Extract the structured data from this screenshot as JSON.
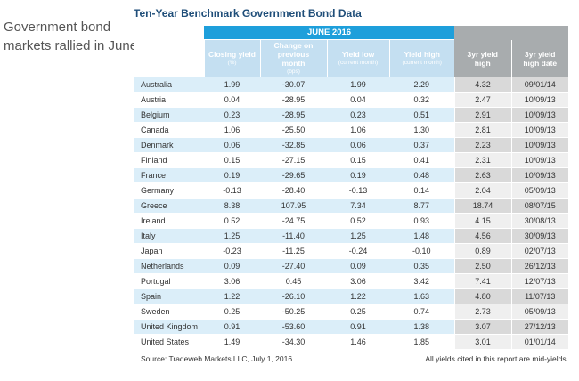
{
  "side_heading": [
    "Government bond",
    "markets rallied in June"
  ],
  "title": "Ten-Year Benchmark Government Bond Data",
  "group_header": "JUNE 2016",
  "columns": [
    {
      "main": "Closing yield",
      "sub": "(%)"
    },
    {
      "main": "Change on previous month",
      "sub": "(bps)"
    },
    {
      "main": "Yield low",
      "sub": "(current month)"
    },
    {
      "main": "Yield high",
      "sub": "(current month)"
    },
    {
      "main": "3yr yield high",
      "sub": ""
    },
    {
      "main": "3yr yield high date",
      "sub": ""
    }
  ],
  "rows": [
    {
      "country": "Australia",
      "values": [
        "1.99",
        "-30.07",
        "1.99",
        "2.29",
        "4.32",
        "09/01/14"
      ]
    },
    {
      "country": "Austria",
      "values": [
        "0.04",
        "-28.95",
        "0.04",
        "0.32",
        "2.47",
        "10/09/13"
      ]
    },
    {
      "country": "Belgium",
      "values": [
        "0.23",
        "-28.95",
        "0.23",
        "0.51",
        "2.91",
        "10/09/13"
      ]
    },
    {
      "country": "Canada",
      "values": [
        "1.06",
        "-25.50",
        "1.06",
        "1.30",
        "2.81",
        "10/09/13"
      ]
    },
    {
      "country": "Denmark",
      "values": [
        "0.06",
        "-32.85",
        "0.06",
        "0.37",
        "2.23",
        "10/09/13"
      ]
    },
    {
      "country": "Finland",
      "values": [
        "0.15",
        "-27.15",
        "0.15",
        "0.41",
        "2.31",
        "10/09/13"
      ]
    },
    {
      "country": "France",
      "values": [
        "0.19",
        "-29.65",
        "0.19",
        "0.48",
        "2.63",
        "10/09/13"
      ]
    },
    {
      "country": "Germany",
      "values": [
        "-0.13",
        "-28.40",
        "-0.13",
        "0.14",
        "2.04",
        "05/09/13"
      ]
    },
    {
      "country": "Greece",
      "values": [
        "8.38",
        "107.95",
        "7.34",
        "8.77",
        "18.74",
        "08/07/15"
      ]
    },
    {
      "country": "Ireland",
      "values": [
        "0.52",
        "-24.75",
        "0.52",
        "0.93",
        "4.15",
        "30/08/13"
      ]
    },
    {
      "country": "Italy",
      "values": [
        "1.25",
        "-11.40",
        "1.25",
        "1.48",
        "4.56",
        "30/09/13"
      ]
    },
    {
      "country": "Japan",
      "values": [
        "-0.23",
        "-11.25",
        "-0.24",
        "-0.10",
        "0.89",
        "02/07/13"
      ]
    },
    {
      "country": "Netherlands",
      "values": [
        "0.09",
        "-27.40",
        "0.09",
        "0.35",
        "2.50",
        "26/12/13"
      ]
    },
    {
      "country": "Portugal",
      "values": [
        "3.06",
        "0.45",
        "3.06",
        "3.42",
        "7.41",
        "12/07/13"
      ]
    },
    {
      "country": "Spain",
      "values": [
        "1.22",
        "-26.10",
        "1.22",
        "1.63",
        "4.80",
        "11/07/13"
      ]
    },
    {
      "country": "Sweden",
      "values": [
        "0.25",
        "-50.25",
        "0.25",
        "0.74",
        "2.73",
        "05/09/13"
      ]
    },
    {
      "country": "United Kingdom",
      "values": [
        "0.91",
        "-53.60",
        "0.91",
        "1.38",
        "3.07",
        "27/12/13"
      ]
    },
    {
      "country": "United States",
      "values": [
        "1.49",
        "-34.30",
        "1.46",
        "1.85",
        "3.01",
        "01/01/14"
      ]
    }
  ],
  "footer_left": "Source: Tradeweb Markets LLC, July 1, 2016",
  "footer_right": "All yields cited in this report are mid-yields.",
  "colors": {
    "header_blue": "#1e9fdb",
    "header_light_blue": "#c4dff1",
    "header_gray": "#a8acae",
    "row_blue": "#dbeef9",
    "row_gray": "#d9d9d9",
    "title": "#1f4e79"
  }
}
